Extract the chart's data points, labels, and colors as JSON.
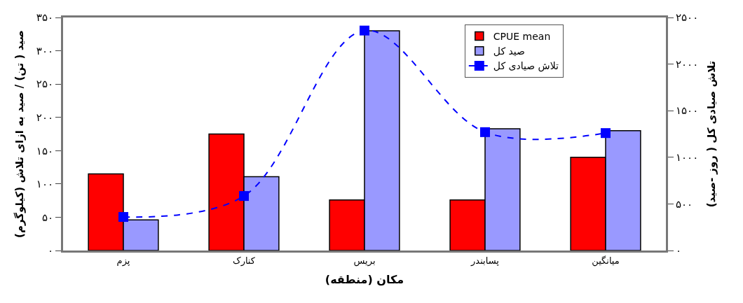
{
  "chart_data": {
    "type": "bar",
    "categories": [
      "پزم",
      "کنارک",
      "بریس",
      "پسابندر",
      "میانگین"
    ],
    "series": [
      {
        "name": "CPUE mean",
        "color": "#ff0000",
        "values": [
          115,
          175,
          76,
          76,
          140
        ]
      },
      {
        "name": "صید کل",
        "color": "#9999ff",
        "values": [
          46,
          111,
          330,
          183,
          180
        ]
      },
      {
        "name": "تلاش صیادی کل",
        "type": "line",
        "axis": "y2",
        "color": "#0000ff",
        "marker": "square",
        "line_style": "dashed",
        "values": [
          360,
          585,
          2360,
          1270,
          1260
        ]
      }
    ],
    "xlabel": "مکان (منطقه)",
    "ylabel": "صید ( تن) / صید به ازای تلاش (کیلوگرم)",
    "y2label": "تلاش صیادی کل ( روز -صید)",
    "ylim": [
      0,
      350
    ],
    "yticks": [
      {
        "value": 0,
        "label": "۰"
      },
      {
        "value": 50,
        "label": "۵۰"
      },
      {
        "value": 100,
        "label": "۱۰۰"
      },
      {
        "value": 150,
        "label": "۱۵۰"
      },
      {
        "value": 200,
        "label": "۲۰۰"
      },
      {
        "value": 250,
        "label": "۲۵۰"
      },
      {
        "value": 300,
        "label": "۳۰۰"
      },
      {
        "value": 350,
        "label": "۳۵۰"
      }
    ],
    "y2lim": [
      0,
      2500
    ],
    "y2ticks": [
      {
        "value": 0,
        "label": "۰"
      },
      {
        "value": 500,
        "label": "۵۰۰"
      },
      {
        "value": 1000,
        "label": "۱۰۰۰"
      },
      {
        "value": 1500,
        "label": "۱۵۰۰"
      },
      {
        "value": 2000,
        "label": "۲۰۰۰"
      },
      {
        "value": 2500,
        "label": "۲۵۰۰"
      }
    ],
    "legend": "top right"
  }
}
